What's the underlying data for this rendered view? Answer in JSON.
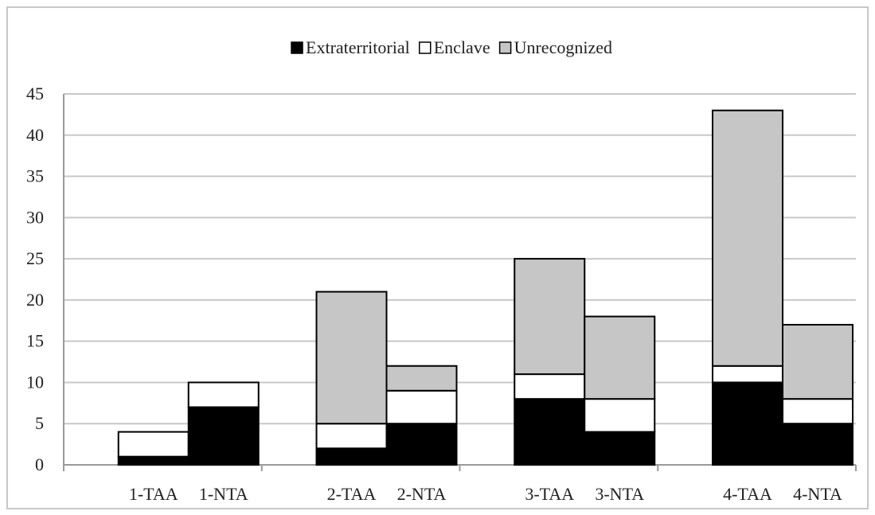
{
  "chart_data": {
    "type": "bar",
    "stacked": true,
    "title": "",
    "xlabel": "",
    "ylabel": "",
    "ylim": [
      0,
      45
    ],
    "yticks": [
      0,
      5,
      10,
      15,
      20,
      25,
      30,
      35,
      40,
      45
    ],
    "grid": true,
    "legend_position": "top",
    "categories": [
      "1-TAA",
      "1-NTA",
      "2-TAA",
      "2-NTA",
      "3-TAA",
      "3-NTA",
      "4-TAA",
      "4-NTA"
    ],
    "groups": [
      [
        "1-TAA",
        "1-NTA"
      ],
      [
        "2-TAA",
        "2-NTA"
      ],
      [
        "3-TAA",
        "3-NTA"
      ],
      [
        "4-TAA",
        "4-NTA"
      ]
    ],
    "series": [
      {
        "name": "Extraterritorial",
        "color": "#000000",
        "values": [
          1,
          7,
          2,
          5,
          8,
          4,
          10,
          5
        ]
      },
      {
        "name": "Enclave",
        "color": "#ffffff",
        "values": [
          3,
          3,
          3,
          4,
          3,
          4,
          2,
          3
        ]
      },
      {
        "name": "Unrecognized",
        "color": "#c6c6c6",
        "values": [
          0,
          0,
          16,
          3,
          14,
          10,
          31,
          9
        ]
      }
    ]
  }
}
